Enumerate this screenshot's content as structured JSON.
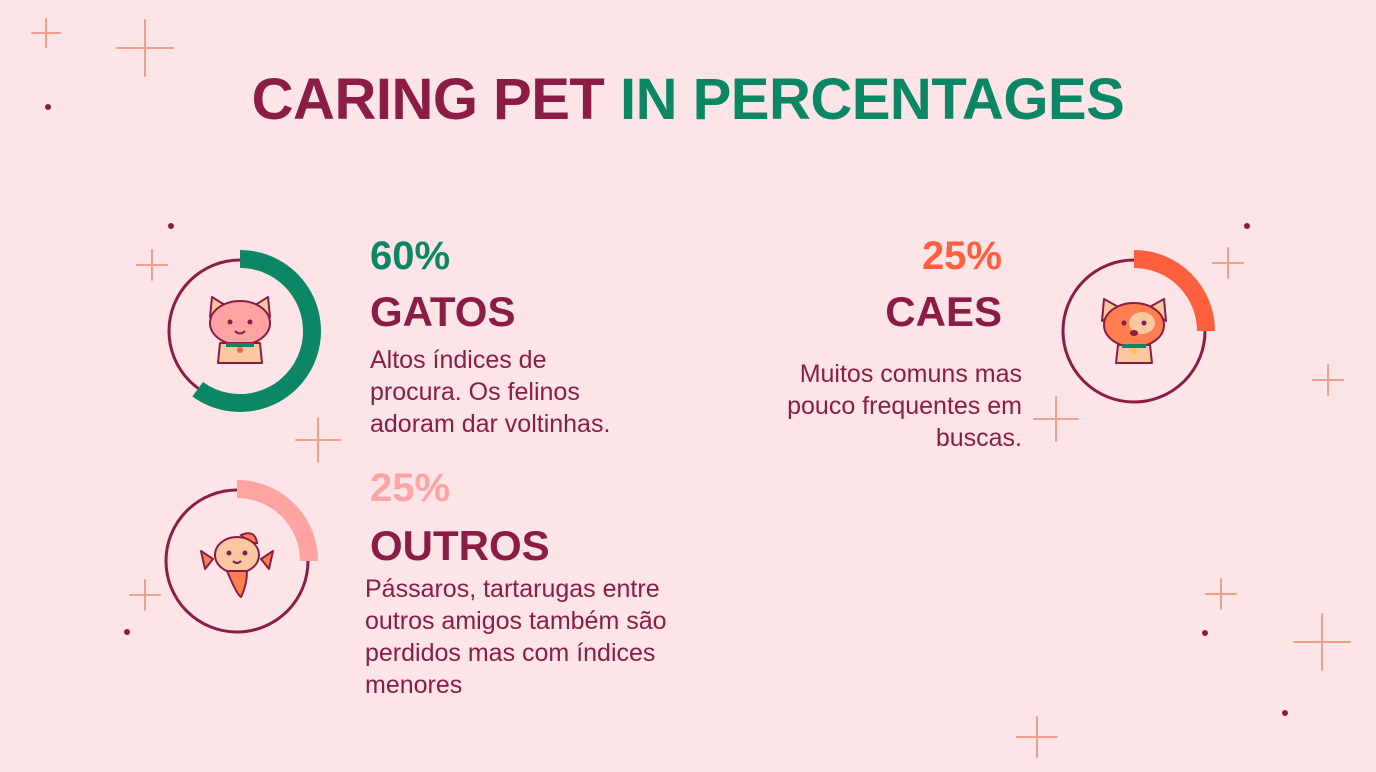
{
  "title": {
    "part1": "CARING PET",
    "part2": "IN PERCENTAGES"
  },
  "colors": {
    "background": "#fde4e7",
    "primary": "#8a1c46",
    "green": "#0b8765",
    "orange": "#ff5f3f",
    "pink": "#ffa3a3"
  },
  "stats": {
    "gatos": {
      "percent": "60%",
      "value": 60,
      "label": "GATOS",
      "desc_lines": [
        "Altos índices de",
        "procura. Os felinos",
        "adoram dar voltinhas."
      ],
      "icon": "cat-icon"
    },
    "caes": {
      "percent": "25%",
      "value": 25,
      "label": "CAES",
      "desc_lines": [
        "Muitos comuns mas",
        "pouco frequentes em",
        "buscas."
      ],
      "icon": "dog-icon"
    },
    "outros": {
      "percent": "25%",
      "value": 25,
      "label": "OUTROS",
      "desc_lines": [
        "Pássaros, tartarugas entre",
        "outros amigos também são",
        "perdidos mas com índices",
        "menores"
      ],
      "icon": "fish-icon"
    }
  }
}
